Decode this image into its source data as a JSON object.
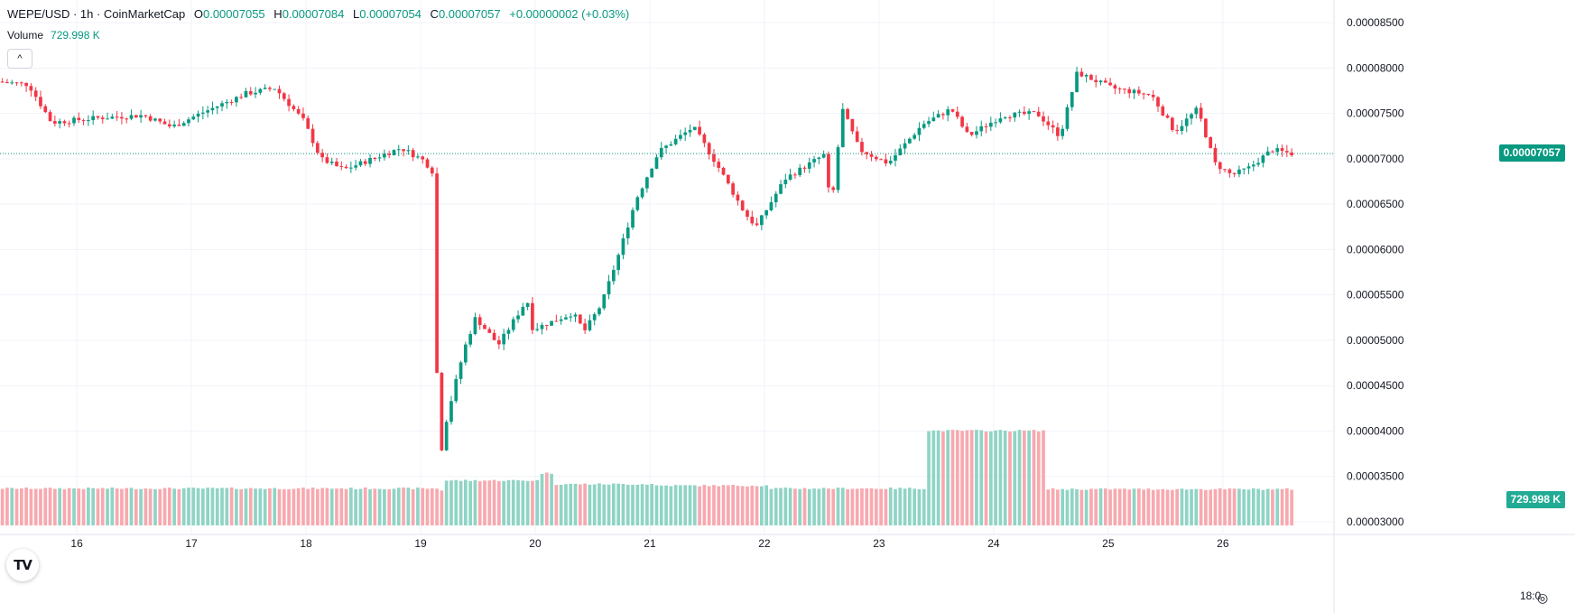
{
  "legend": {
    "symbol": "WEPE/USD · 1h · CoinMarketCap",
    "open_label": "O",
    "open": "0.00007055",
    "high_label": "H",
    "high": "0.00007084",
    "low_label": "L",
    "low": "0.00007054",
    "close_label": "C",
    "close": "0.00007057",
    "change": "+0.00000002 (+0.03%)"
  },
  "volume": {
    "label": "Volume",
    "value": "729.998 K"
  },
  "collapse_icon": "^",
  "logo": "TV",
  "price_tag": "0.00007057",
  "volume_tag": "729.998 K",
  "timezone_label": "18:0",
  "settings_icon": "◎",
  "colors": {
    "up": "#089981",
    "down": "#f23645",
    "vol_up": "#8fd4c5",
    "vol_down": "#f7a9af",
    "grid": "#f0f3fa",
    "text": "#131722"
  },
  "chart_data": {
    "type": "candlestick",
    "title": "WEPE/USD · 1h · CoinMarketCap",
    "y_axis": {
      "ticks": [
        "0.00008500",
        "0.00008000",
        "0.00007500",
        "0.00007000",
        "0.00006500",
        "0.00006000",
        "0.00005500",
        "0.00005000",
        "0.00004500",
        "0.00004000",
        "0.00003500",
        "0.00003000"
      ],
      "tick_values": [
        8.5,
        8.0,
        7.5,
        7.0,
        6.5,
        6.0,
        5.5,
        5.0,
        4.5,
        4.0,
        3.5,
        3.0
      ],
      "unit_scale": "1e-5 USD",
      "range": [
        2.96,
        8.75
      ]
    },
    "x_axis": {
      "ticks": [
        "16",
        "17",
        "18",
        "19",
        "20",
        "21",
        "22",
        "23",
        "24",
        "25",
        "26"
      ],
      "tick_positions_day": [
        1,
        2,
        3,
        4,
        5,
        6,
        7,
        8,
        9,
        10,
        11
      ],
      "range_day": [
        0.33,
        11.97
      ]
    },
    "last_price": 7.057,
    "ohlc_keypoints_day_price": [
      [
        0.33,
        7.85
      ],
      [
        0.6,
        7.82
      ],
      [
        0.8,
        7.4
      ],
      [
        1.2,
        7.45
      ],
      [
        1.6,
        7.48
      ],
      [
        1.85,
        7.35
      ],
      [
        2.1,
        7.5
      ],
      [
        2.5,
        7.72
      ],
      [
        2.75,
        7.78
      ],
      [
        3.0,
        7.42
      ],
      [
        3.15,
        7.0
      ],
      [
        3.35,
        6.88
      ],
      [
        3.6,
        7.0
      ],
      [
        3.85,
        7.12
      ],
      [
        4.05,
        6.98
      ],
      [
        4.15,
        6.82
      ],
      [
        4.17,
        3.55
      ],
      [
        4.25,
        4.15
      ],
      [
        4.4,
        4.9
      ],
      [
        4.5,
        5.25
      ],
      [
        4.7,
        4.95
      ],
      [
        4.95,
        5.45
      ],
      [
        5.0,
        5.12
      ],
      [
        5.35,
        5.3
      ],
      [
        5.45,
        5.1
      ],
      [
        5.6,
        5.4
      ],
      [
        5.75,
        5.95
      ],
      [
        5.9,
        6.55
      ],
      [
        6.1,
        7.08
      ],
      [
        6.4,
        7.35
      ],
      [
        6.6,
        6.95
      ],
      [
        6.85,
        6.4
      ],
      [
        6.95,
        6.25
      ],
      [
        7.2,
        6.78
      ],
      [
        7.55,
        7.05
      ],
      [
        7.6,
        6.4
      ],
      [
        7.7,
        7.55
      ],
      [
        7.85,
        7.1
      ],
      [
        8.1,
        6.95
      ],
      [
        8.4,
        7.38
      ],
      [
        8.65,
        7.55
      ],
      [
        8.8,
        7.25
      ],
      [
        9.1,
        7.48
      ],
      [
        9.4,
        7.5
      ],
      [
        9.6,
        7.25
      ],
      [
        9.75,
        7.95
      ],
      [
        10.05,
        7.78
      ],
      [
        10.4,
        7.7
      ],
      [
        10.6,
        7.3
      ],
      [
        10.8,
        7.55
      ],
      [
        10.95,
        6.95
      ],
      [
        11.1,
        6.82
      ],
      [
        11.25,
        6.9
      ],
      [
        11.45,
        7.1
      ],
      [
        11.62,
        7.057
      ]
    ],
    "volume": {
      "series_name": "Volume",
      "last": 729.998,
      "unit": "K",
      "segments_day_height": [
        [
          0.33,
          1.0
        ],
        [
          4.15,
          0.95
        ],
        [
          4.2,
          1.22
        ],
        [
          5.0,
          1.42
        ],
        [
          5.15,
          1.12
        ],
        [
          6.0,
          1.08
        ],
        [
          7.0,
          1.0
        ],
        [
          8.3,
          1.0
        ],
        [
          8.4,
          2.6
        ],
        [
          9.4,
          2.6
        ],
        [
          9.45,
          0.98
        ],
        [
          11.62,
          0.92
        ]
      ]
    }
  }
}
